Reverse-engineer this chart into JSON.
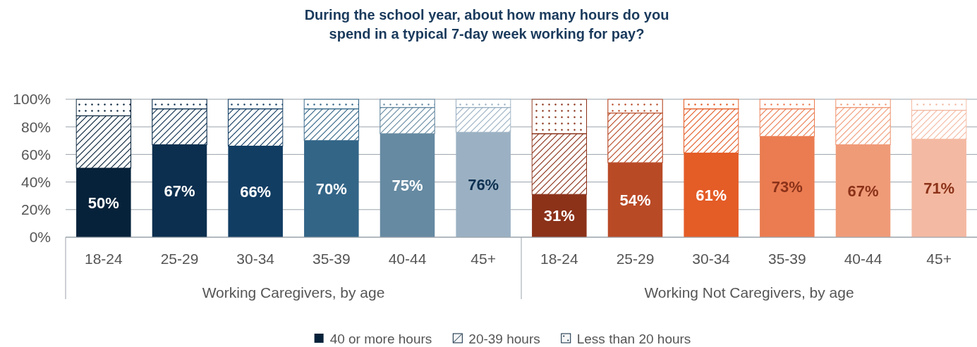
{
  "chart_data": {
    "type": "bar",
    "stacked": true,
    "title": "During the school year, about how many hours do you spend in a typical 7-day week working for pay?",
    "categories": [
      "18-24",
      "25-29",
      "30-34",
      "35-39",
      "40-44",
      "45+",
      "18-24",
      "25-29",
      "30-34",
      "35-39",
      "40-44",
      "45+"
    ],
    "series": [
      {
        "name": "40 or more hours",
        "color": "#06223a",
        "colors": [
          "#06223a",
          "#0c2f4f",
          "#123d63",
          "#336587",
          "#668aa2",
          "#9bb1c3",
          "#8b3219",
          "#b94a26",
          "#e45c26",
          "#eb7c51",
          "#f09b78",
          "#f4b9a2"
        ],
        "values": [
          50,
          67,
          66,
          70,
          75,
          76,
          31,
          54,
          61,
          73,
          67,
          71
        ],
        "value_labels": [
          "50%",
          "67%",
          "66%",
          "70%",
          "75%",
          "76%",
          "31%",
          "54%",
          "61%",
          "73%",
          "67%",
          "71%"
        ]
      },
      {
        "name": "20-39 hours",
        "color": "#06223a",
        "colors": [
          "#06223a",
          "#0c2f4f",
          "#123d63",
          "#336587",
          "#668aa2",
          "#9bb1c3",
          "#8b3219",
          "#b94a26",
          "#e45c26",
          "#eb7c51",
          "#f09b78",
          "#f4b9a2"
        ],
        "values": [
          38,
          26,
          27,
          23,
          19,
          18,
          44,
          36,
          32,
          20,
          27,
          21
        ]
      },
      {
        "name": "Less than 20 hours",
        "color": "#06223a",
        "colors": [
          "#06223a",
          "#0c2f4f",
          "#123d63",
          "#336587",
          "#668aa2",
          "#9bb1c3",
          "#8b3219",
          "#b94a26",
          "#e45c26",
          "#eb7c51",
          "#f09b78",
          "#f4b9a2"
        ],
        "values": [
          12,
          7,
          7,
          7,
          6,
          6,
          25,
          10,
          7,
          7,
          6,
          8
        ]
      }
    ],
    "ylim": [
      0,
      100
    ],
    "yticks": [
      {
        "value": 0,
        "label": "0%"
      },
      {
        "value": 20,
        "label": "20%"
      },
      {
        "value": 40,
        "label": "40%"
      },
      {
        "value": 60,
        "label": "60%"
      },
      {
        "value": 80,
        "label": "80%"
      },
      {
        "value": 100,
        "label": "100%"
      }
    ],
    "grid": "y",
    "legend": "bottom",
    "annotations": [
      "Working Caregivers, by age",
      "Working Not Caregivers, by age"
    ]
  }
}
